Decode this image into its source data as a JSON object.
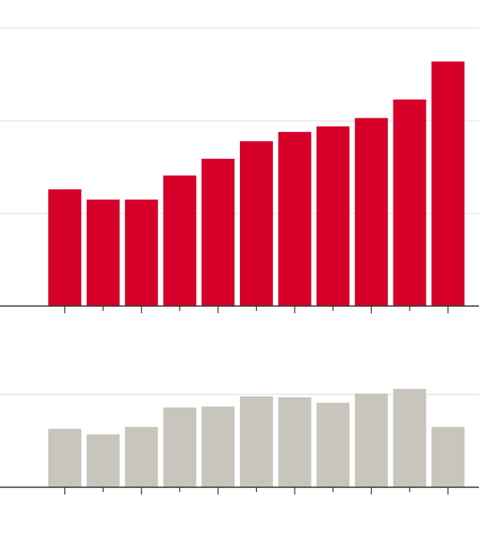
{
  "chart_data": [
    {
      "type": "bar",
      "categories": [
        null,
        null,
        null,
        null,
        null,
        null,
        null,
        null,
        null,
        null,
        null
      ],
      "values": [
        1.26,
        1.15,
        1.15,
        1.41,
        1.59,
        1.78,
        1.88,
        1.94,
        2.03,
        2.23,
        2.64
      ],
      "color": "#d6002a",
      "ylim": [
        0,
        3
      ],
      "yticks": [
        0,
        1,
        2,
        3
      ],
      "grid": true
    },
    {
      "type": "bar",
      "categories": [
        null,
        null,
        null,
        null,
        null,
        null,
        null,
        null,
        null,
        null,
        null
      ],
      "values": [
        0.63,
        0.57,
        0.65,
        0.86,
        0.87,
        0.98,
        0.97,
        0.91,
        1.01,
        1.06,
        0.65
      ],
      "color": "#c8c5bd",
      "ylim": [
        0,
        1.25
      ],
      "yticks": [
        0,
        1
      ],
      "grid": true
    }
  ]
}
